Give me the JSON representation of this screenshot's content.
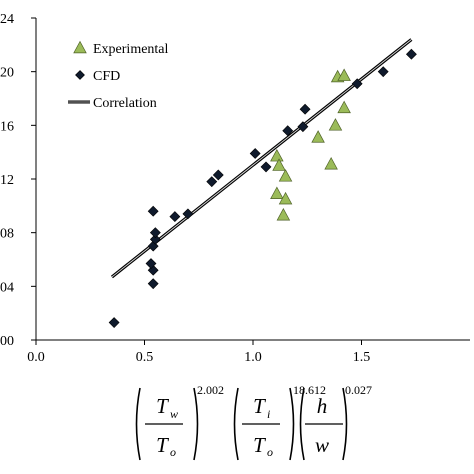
{
  "chart_data": {
    "type": "scatter",
    "xlim": [
      0.0,
      2.0
    ],
    "ylim": [
      0.0,
      0.24
    ],
    "grid": false,
    "legend_position": "top-left",
    "x_ticks": [
      {
        "value": 0.0,
        "label": "0.0"
      },
      {
        "value": 0.5,
        "label": "0.5"
      },
      {
        "value": 1.0,
        "label": "1.0"
      },
      {
        "value": 1.5,
        "label": "1.5"
      }
    ],
    "y_ticks": [
      {
        "value": 0.0,
        "label": "00"
      },
      {
        "value": 0.04,
        "label": "04"
      },
      {
        "value": 0.08,
        "label": "08"
      },
      {
        "value": 0.12,
        "label": "12"
      },
      {
        "value": 0.16,
        "label": "16"
      },
      {
        "value": 0.2,
        "label": "20"
      },
      {
        "value": 0.24,
        "label": "24"
      }
    ],
    "xlabel_formula": {
      "t1": "T",
      "s1": "w",
      "b1": "T",
      "bs1": "o",
      "e1": "2.002",
      "t2": "T",
      "s2": "i",
      "b2": "T",
      "bs2": "o",
      "e2": "18.612",
      "t3": "h",
      "b3": "w",
      "e3": "0.027"
    },
    "series": [
      {
        "name": "Experimental",
        "marker": "triangle",
        "color": "#9bbb59",
        "stroke": "#4f6228",
        "points": [
          {
            "x": 1.11,
            "y": 0.137
          },
          {
            "x": 1.12,
            "y": 0.13
          },
          {
            "x": 1.15,
            "y": 0.122
          },
          {
            "x": 1.11,
            "y": 0.109
          },
          {
            "x": 1.15,
            "y": 0.105
          },
          {
            "x": 1.14,
            "y": 0.093
          },
          {
            "x": 1.3,
            "y": 0.151
          },
          {
            "x": 1.36,
            "y": 0.131
          },
          {
            "x": 1.38,
            "y": 0.16
          },
          {
            "x": 1.42,
            "y": 0.173
          },
          {
            "x": 1.39,
            "y": 0.196
          },
          {
            "x": 1.42,
            "y": 0.197
          }
        ]
      },
      {
        "name": "CFD",
        "marker": "diamond",
        "color": "#0f1a2c",
        "stroke": "#000000",
        "points": [
          {
            "x": 0.36,
            "y": 0.013
          },
          {
            "x": 0.54,
            "y": 0.042
          },
          {
            "x": 0.54,
            "y": 0.052
          },
          {
            "x": 0.53,
            "y": 0.057
          },
          {
            "x": 0.54,
            "y": 0.07
          },
          {
            "x": 0.55,
            "y": 0.075
          },
          {
            "x": 0.55,
            "y": 0.08
          },
          {
            "x": 0.54,
            "y": 0.096
          },
          {
            "x": 0.64,
            "y": 0.092
          },
          {
            "x": 0.7,
            "y": 0.094
          },
          {
            "x": 0.81,
            "y": 0.118
          },
          {
            "x": 0.84,
            "y": 0.123
          },
          {
            "x": 1.01,
            "y": 0.139
          },
          {
            "x": 1.06,
            "y": 0.129
          },
          {
            "x": 1.16,
            "y": 0.156
          },
          {
            "x": 1.23,
            "y": 0.159
          },
          {
            "x": 1.24,
            "y": 0.172
          },
          {
            "x": 1.48,
            "y": 0.191
          },
          {
            "x": 1.6,
            "y": 0.2
          },
          {
            "x": 1.73,
            "y": 0.213
          }
        ]
      },
      {
        "name": "Correlation",
        "marker": "line",
        "color": "#000000",
        "points": [
          {
            "x": 0.35,
            "y": 0.047
          },
          {
            "x": 1.73,
            "y": 0.224
          }
        ]
      }
    ]
  }
}
